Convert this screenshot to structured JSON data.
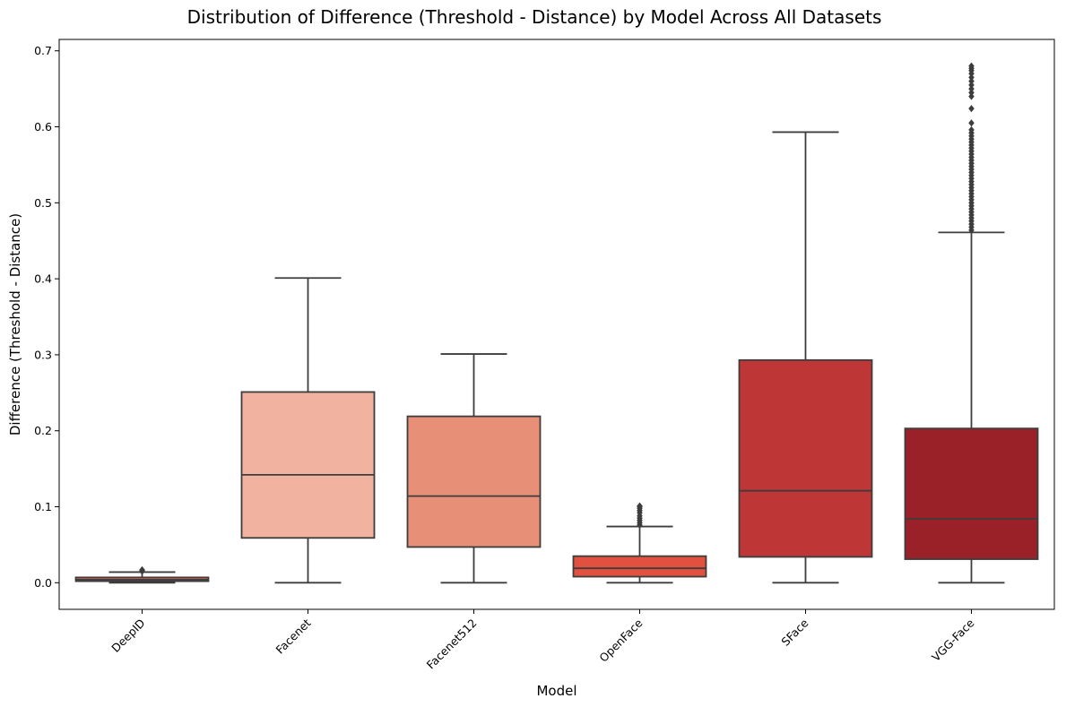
{
  "chart_data": {
    "type": "box",
    "title": "Distribution of Difference (Threshold - Distance) by Model Across All Datasets",
    "xlabel": "Model",
    "ylabel": "Difference (Threshold - Distance)",
    "ylim": [
      -0.035,
      0.715
    ],
    "yticks": [
      "0.0",
      "0.1",
      "0.2",
      "0.3",
      "0.4",
      "0.5",
      "0.6",
      "0.7"
    ],
    "grid": false,
    "categories": [
      "DeepID",
      "Facenet",
      "Facenet512",
      "OpenFace",
      "SFace",
      "VGG-Face"
    ],
    "colors": [
      "#e8634f",
      "#f1b39f",
      "#e88f77",
      "#e2513f",
      "#bf3637",
      "#9a2128"
    ],
    "boxes": [
      {
        "model": "DeepID",
        "whisker_low": 0.0,
        "q1": 0.002,
        "median": 0.004,
        "q3": 0.007,
        "whisker_high": 0.014,
        "outliers": [
          0.015,
          0.016,
          0.017
        ]
      },
      {
        "model": "Facenet",
        "whisker_low": 0.0,
        "q1": 0.059,
        "median": 0.142,
        "q3": 0.251,
        "whisker_high": 0.401,
        "outliers": []
      },
      {
        "model": "Facenet512",
        "whisker_low": 0.0,
        "q1": 0.047,
        "median": 0.114,
        "q3": 0.219,
        "whisker_high": 0.301,
        "outliers": []
      },
      {
        "model": "OpenFace",
        "whisker_low": 0.0,
        "q1": 0.008,
        "median": 0.019,
        "q3": 0.035,
        "whisker_high": 0.074,
        "outliers": [
          0.076,
          0.079,
          0.082,
          0.085,
          0.088,
          0.092,
          0.095,
          0.098,
          0.1,
          0.101
        ]
      },
      {
        "model": "SFace",
        "whisker_low": 0.0,
        "q1": 0.034,
        "median": 0.121,
        "q3": 0.293,
        "whisker_high": 0.593,
        "outliers": []
      },
      {
        "model": "VGG-Face",
        "whisker_low": 0.0,
        "q1": 0.031,
        "median": 0.084,
        "q3": 0.203,
        "whisker_high": 0.461,
        "outliers": [
          0.464,
          0.468,
          0.472,
          0.476,
          0.48,
          0.484,
          0.488,
          0.492,
          0.496,
          0.5,
          0.504,
          0.508,
          0.512,
          0.516,
          0.52,
          0.524,
          0.528,
          0.532,
          0.536,
          0.54,
          0.544,
          0.548,
          0.552,
          0.556,
          0.56,
          0.564,
          0.568,
          0.572,
          0.576,
          0.58,
          0.584,
          0.588,
          0.592,
          0.596,
          0.605,
          0.624,
          0.64,
          0.645,
          0.65,
          0.655,
          0.66,
          0.665,
          0.67,
          0.674,
          0.677,
          0.68
        ]
      }
    ]
  }
}
